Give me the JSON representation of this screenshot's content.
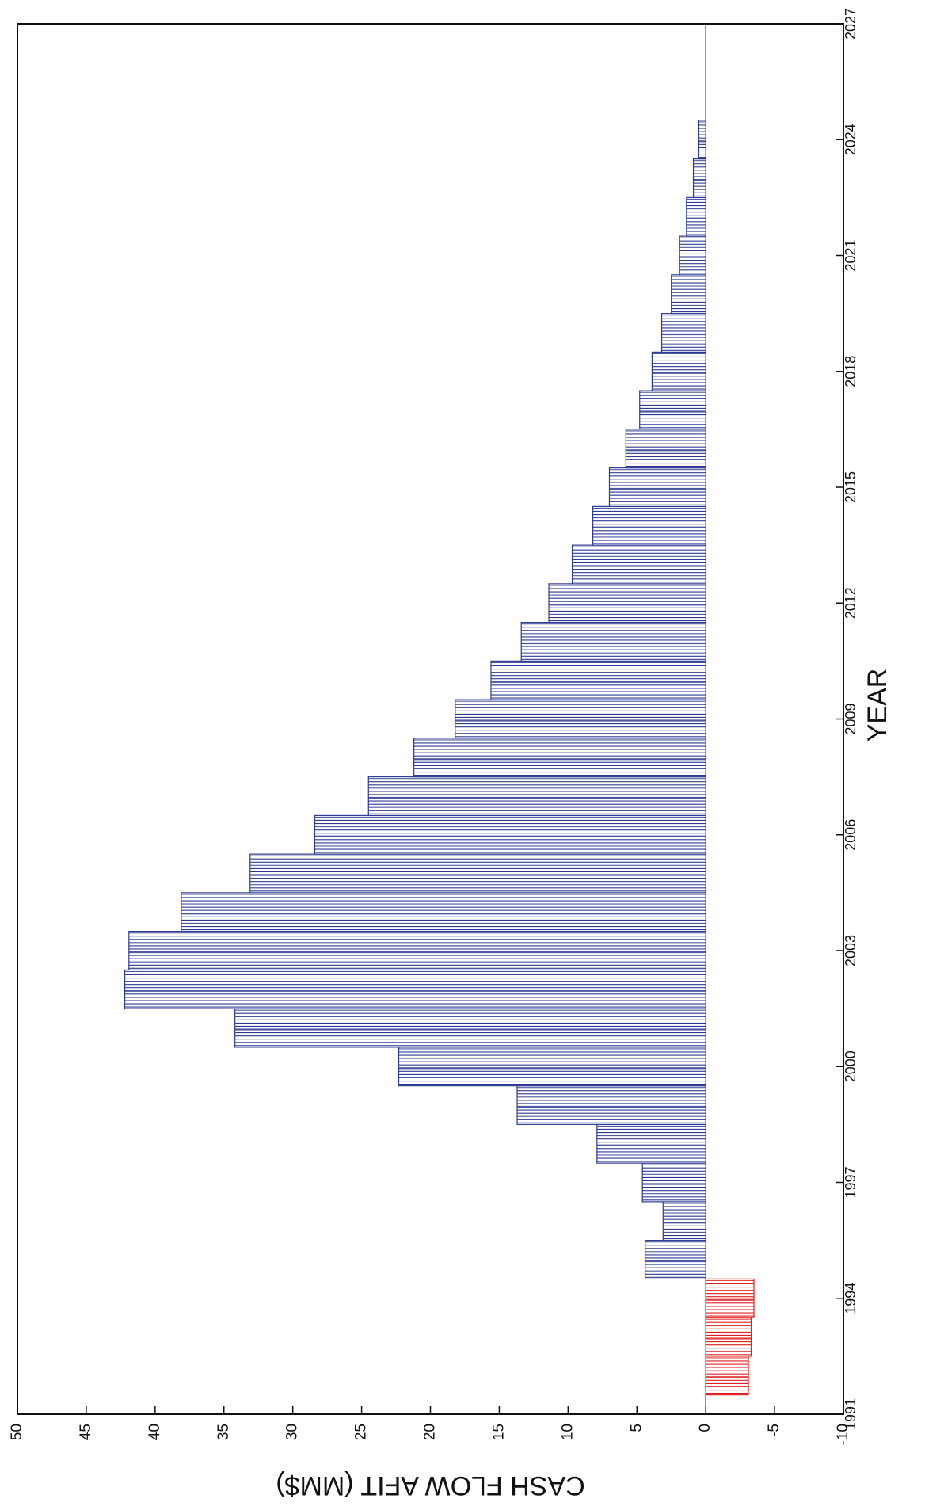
{
  "chart_data": {
    "type": "bar",
    "orientation": "rotated-90",
    "xlabel": "YEAR",
    "ylabel": "CASH FLOW AFIT (MM$)",
    "xlim": [
      1991,
      2027
    ],
    "ylim": [
      -10,
      50
    ],
    "x_ticks": [
      "1991",
      "1994",
      "1997",
      "2000",
      "2003",
      "2006",
      "2009",
      "2012",
      "2015",
      "2018",
      "2021",
      "2024",
      "2027"
    ],
    "y_ticks": [
      "50",
      "45",
      "40",
      "35",
      "30",
      "25",
      "20",
      "15",
      "10",
      "5",
      "0",
      "-5",
      "-10"
    ],
    "grid": false,
    "categories": [
      1992,
      1993,
      1994,
      1995,
      1996,
      1997,
      1998,
      1999,
      2000,
      2001,
      2002,
      2003,
      2004,
      2005,
      2006,
      2007,
      2008,
      2009,
      2010,
      2011,
      2012,
      2013,
      2014,
      2015,
      2016,
      2017,
      2018,
      2019,
      2020,
      2021,
      2022,
      2023,
      2024
    ],
    "values": [
      -3.1,
      -3.3,
      -3.5,
      4.4,
      3.1,
      4.6,
      7.9,
      13.7,
      22.3,
      34.2,
      42.2,
      41.9,
      38.1,
      33.1,
      28.4,
      24.5,
      21.2,
      18.2,
      15.6,
      13.4,
      11.4,
      9.7,
      8.2,
      7.0,
      5.8,
      4.8,
      3.9,
      3.2,
      2.5,
      1.9,
      1.4,
      0.9,
      0.5
    ],
    "colors": {
      "positive": "#2f3b93",
      "negative": "#e02020"
    }
  }
}
